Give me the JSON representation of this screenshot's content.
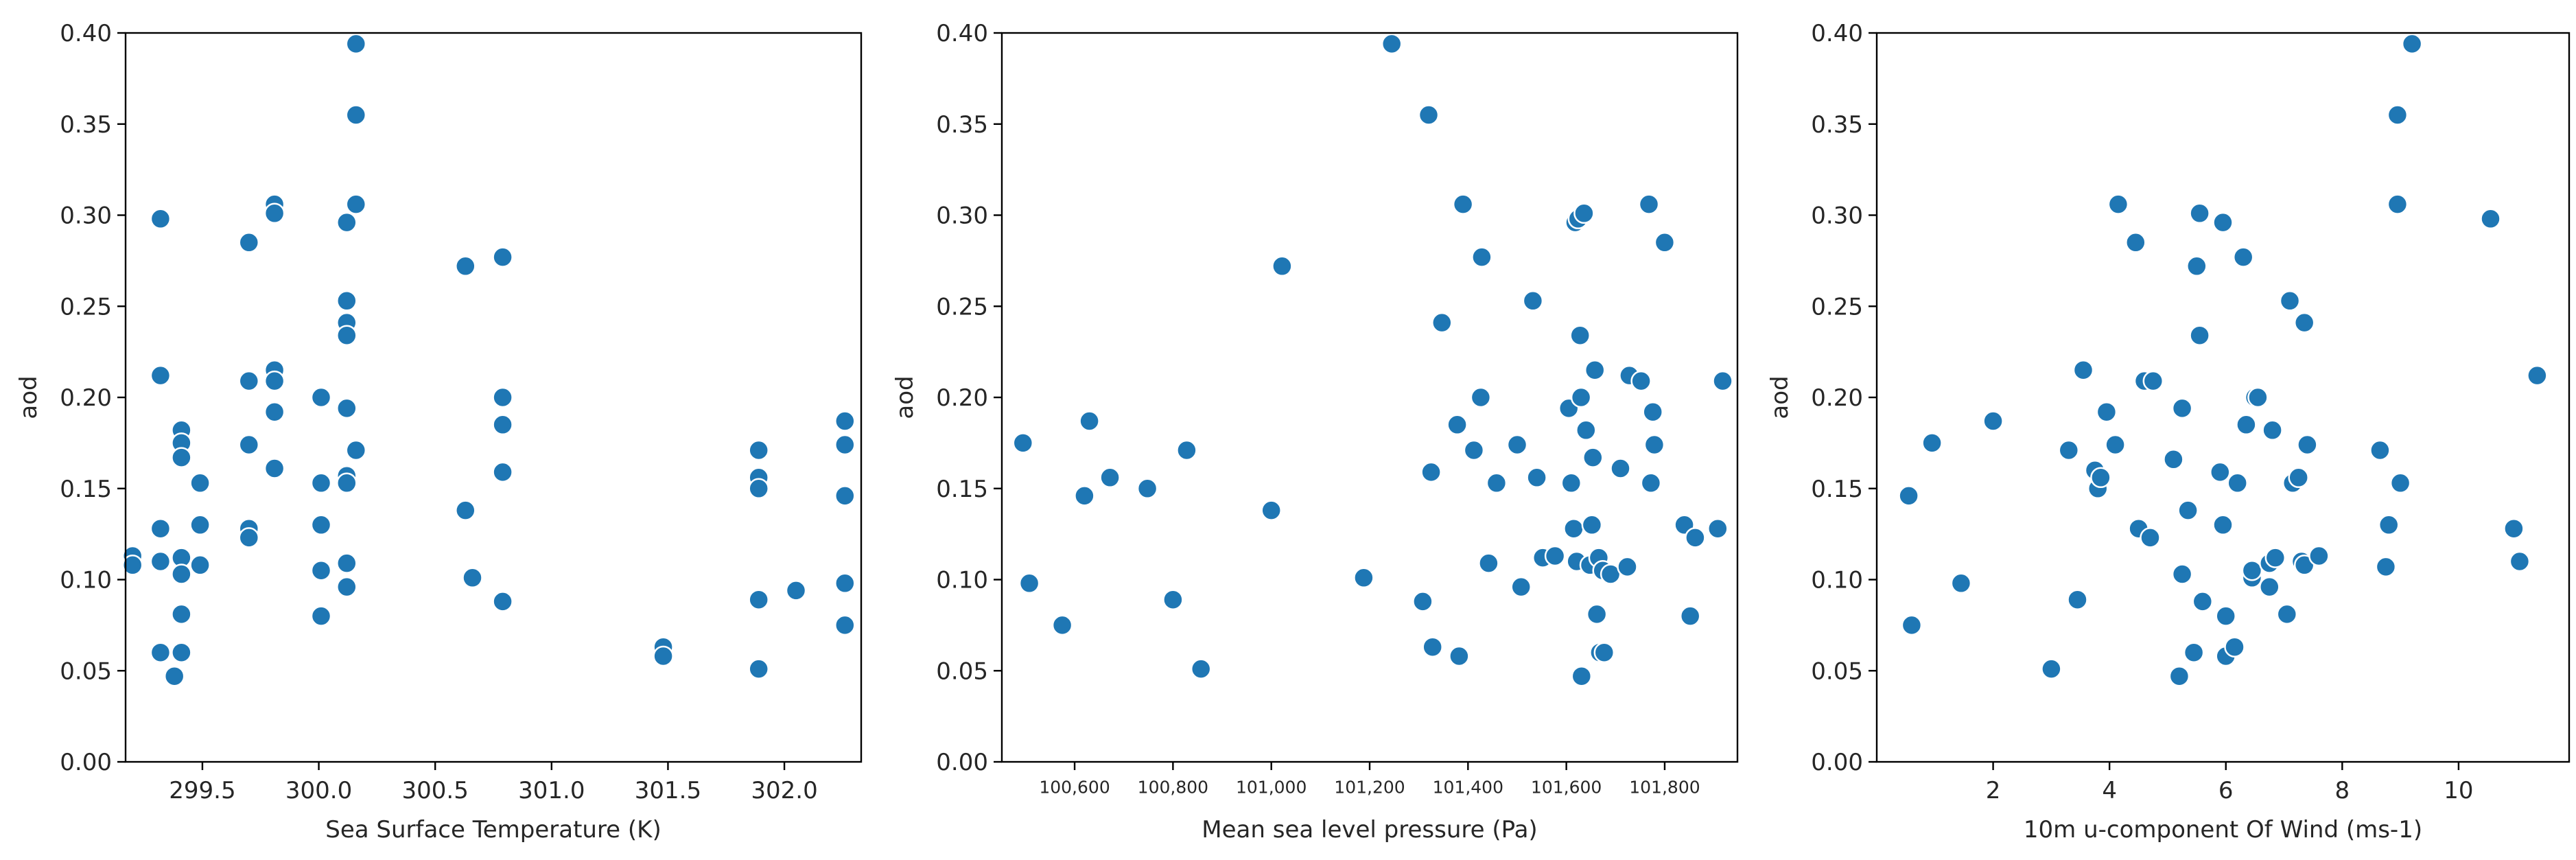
{
  "chart_data": [
    {
      "type": "scatter",
      "xlabel": "Sea Surface Temperature (K)",
      "ylabel": "aod",
      "xlim": [
        299.17,
        302.33
      ],
      "ylim": [
        0.0,
        0.4
      ],
      "xticks": [
        299.5,
        300.0,
        300.5,
        301.0,
        301.5,
        302.0
      ],
      "xtick_labels": [
        "299.5",
        "300.0",
        "300.5",
        "301.0",
        "301.5",
        "302.0"
      ],
      "yticks": [
        0.0,
        0.05,
        0.1,
        0.15,
        0.2,
        0.25,
        0.3,
        0.35,
        0.4
      ],
      "ytick_labels": [
        "0.00",
        "0.05",
        "0.10",
        "0.15",
        "0.20",
        "0.25",
        "0.30",
        "0.35",
        "0.40"
      ],
      "grid": false,
      "marker_color": "#1f77b4",
      "points": [
        {
          "x": 299.2,
          "y": 0.113
        },
        {
          "x": 299.2,
          "y": 0.108
        },
        {
          "x": 299.32,
          "y": 0.298
        },
        {
          "x": 299.32,
          "y": 0.212
        },
        {
          "x": 299.32,
          "y": 0.128
        },
        {
          "x": 299.32,
          "y": 0.11
        },
        {
          "x": 299.32,
          "y": 0.06
        },
        {
          "x": 299.38,
          "y": 0.047
        },
        {
          "x": 299.41,
          "y": 0.182
        },
        {
          "x": 299.41,
          "y": 0.175
        },
        {
          "x": 299.41,
          "y": 0.167
        },
        {
          "x": 299.41,
          "y": 0.112
        },
        {
          "x": 299.41,
          "y": 0.103
        },
        {
          "x": 299.41,
          "y": 0.081
        },
        {
          "x": 299.41,
          "y": 0.06
        },
        {
          "x": 299.49,
          "y": 0.153
        },
        {
          "x": 299.49,
          "y": 0.13
        },
        {
          "x": 299.49,
          "y": 0.108
        },
        {
          "x": 299.7,
          "y": 0.285
        },
        {
          "x": 299.7,
          "y": 0.209
        },
        {
          "x": 299.7,
          "y": 0.174
        },
        {
          "x": 299.7,
          "y": 0.128
        },
        {
          "x": 299.7,
          "y": 0.123
        },
        {
          "x": 299.81,
          "y": 0.306
        },
        {
          "x": 299.81,
          "y": 0.301
        },
        {
          "x": 299.81,
          "y": 0.215
        },
        {
          "x": 299.81,
          "y": 0.209
        },
        {
          "x": 299.81,
          "y": 0.192
        },
        {
          "x": 299.81,
          "y": 0.161
        },
        {
          "x": 300.01,
          "y": 0.2
        },
        {
          "x": 300.01,
          "y": 0.153
        },
        {
          "x": 300.01,
          "y": 0.13
        },
        {
          "x": 300.01,
          "y": 0.105
        },
        {
          "x": 300.01,
          "y": 0.08
        },
        {
          "x": 300.12,
          "y": 0.296
        },
        {
          "x": 300.12,
          "y": 0.253
        },
        {
          "x": 300.12,
          "y": 0.241
        },
        {
          "x": 300.12,
          "y": 0.234
        },
        {
          "x": 300.12,
          "y": 0.194
        },
        {
          "x": 300.12,
          "y": 0.157
        },
        {
          "x": 300.12,
          "y": 0.153
        },
        {
          "x": 300.12,
          "y": 0.109
        },
        {
          "x": 300.12,
          "y": 0.096
        },
        {
          "x": 300.16,
          "y": 0.394
        },
        {
          "x": 300.16,
          "y": 0.355
        },
        {
          "x": 300.16,
          "y": 0.306
        },
        {
          "x": 300.16,
          "y": 0.171
        },
        {
          "x": 300.63,
          "y": 0.272
        },
        {
          "x": 300.63,
          "y": 0.138
        },
        {
          "x": 300.66,
          "y": 0.101
        },
        {
          "x": 300.79,
          "y": 0.277
        },
        {
          "x": 300.79,
          "y": 0.2
        },
        {
          "x": 300.79,
          "y": 0.185
        },
        {
          "x": 300.79,
          "y": 0.159
        },
        {
          "x": 300.79,
          "y": 0.088
        },
        {
          "x": 301.48,
          "y": 0.063
        },
        {
          "x": 301.48,
          "y": 0.058
        },
        {
          "x": 301.89,
          "y": 0.171
        },
        {
          "x": 301.89,
          "y": 0.156
        },
        {
          "x": 301.89,
          "y": 0.15
        },
        {
          "x": 301.89,
          "y": 0.089
        },
        {
          "x": 301.89,
          "y": 0.051
        },
        {
          "x": 302.05,
          "y": 0.094
        },
        {
          "x": 302.26,
          "y": 0.187
        },
        {
          "x": 302.26,
          "y": 0.174
        },
        {
          "x": 302.26,
          "y": 0.146
        },
        {
          "x": 302.26,
          "y": 0.098
        },
        {
          "x": 302.26,
          "y": 0.075
        }
      ]
    },
    {
      "type": "scatter",
      "xlabel": "Mean sea level pressure (Pa)",
      "ylabel": "aod",
      "xlim": [
        100452,
        101948
      ],
      "ylim": [
        0.0,
        0.4
      ],
      "xticks": [
        100600,
        100800,
        101000,
        101200,
        101400,
        101600,
        101800
      ],
      "xtick_labels": [
        "100,600",
        "100,800",
        "101,000",
        "101,200",
        "101,400",
        "101,600",
        "101,800"
      ],
      "yticks": [
        0.0,
        0.05,
        0.1,
        0.15,
        0.2,
        0.25,
        0.3,
        0.35,
        0.4
      ],
      "ytick_labels": [
        "0.00",
        "0.05",
        "0.10",
        "0.15",
        "0.20",
        "0.25",
        "0.30",
        "0.35",
        "0.40"
      ],
      "grid": false,
      "marker_color": "#1f77b4",
      "points": [
        {
          "x": 100495,
          "y": 0.175
        },
        {
          "x": 100508,
          "y": 0.098
        },
        {
          "x": 100575,
          "y": 0.075
        },
        {
          "x": 100620,
          "y": 0.146
        },
        {
          "x": 100630,
          "y": 0.187
        },
        {
          "x": 100672,
          "y": 0.156
        },
        {
          "x": 100748,
          "y": 0.15
        },
        {
          "x": 100800,
          "y": 0.089
        },
        {
          "x": 100828,
          "y": 0.171
        },
        {
          "x": 100857,
          "y": 0.051
        },
        {
          "x": 101000,
          "y": 0.138
        },
        {
          "x": 101022,
          "y": 0.272
        },
        {
          "x": 101188,
          "y": 0.101
        },
        {
          "x": 101245,
          "y": 0.394
        },
        {
          "x": 101308,
          "y": 0.088
        },
        {
          "x": 101320,
          "y": 0.355
        },
        {
          "x": 101325,
          "y": 0.159
        },
        {
          "x": 101328,
          "y": 0.063
        },
        {
          "x": 101347,
          "y": 0.241
        },
        {
          "x": 101378,
          "y": 0.185
        },
        {
          "x": 101382,
          "y": 0.058
        },
        {
          "x": 101390,
          "y": 0.306
        },
        {
          "x": 101412,
          "y": 0.171
        },
        {
          "x": 101426,
          "y": 0.2
        },
        {
          "x": 101428,
          "y": 0.277
        },
        {
          "x": 101442,
          "y": 0.109
        },
        {
          "x": 101458,
          "y": 0.153
        },
        {
          "x": 101500,
          "y": 0.174
        },
        {
          "x": 101508,
          "y": 0.096
        },
        {
          "x": 101532,
          "y": 0.253
        },
        {
          "x": 101540,
          "y": 0.156
        },
        {
          "x": 101552,
          "y": 0.112
        },
        {
          "x": 101577,
          "y": 0.113
        },
        {
          "x": 101605,
          "y": 0.194
        },
        {
          "x": 101610,
          "y": 0.153
        },
        {
          "x": 101615,
          "y": 0.128
        },
        {
          "x": 101618,
          "y": 0.296
        },
        {
          "x": 101621,
          "y": 0.11
        },
        {
          "x": 101624,
          "y": 0.298
        },
        {
          "x": 101628,
          "y": 0.234
        },
        {
          "x": 101630,
          "y": 0.2
        },
        {
          "x": 101631,
          "y": 0.047
        },
        {
          "x": 101636,
          "y": 0.301
        },
        {
          "x": 101640,
          "y": 0.182
        },
        {
          "x": 101648,
          "y": 0.108
        },
        {
          "x": 101652,
          "y": 0.13
        },
        {
          "x": 101654,
          "y": 0.167
        },
        {
          "x": 101658,
          "y": 0.215
        },
        {
          "x": 101662,
          "y": 0.081
        },
        {
          "x": 101666,
          "y": 0.112
        },
        {
          "x": 101668,
          "y": 0.06
        },
        {
          "x": 101674,
          "y": 0.105
        },
        {
          "x": 101677,
          "y": 0.06
        },
        {
          "x": 101690,
          "y": 0.103
        },
        {
          "x": 101710,
          "y": 0.161
        },
        {
          "x": 101724,
          "y": 0.107
        },
        {
          "x": 101728,
          "y": 0.212
        },
        {
          "x": 101752,
          "y": 0.209
        },
        {
          "x": 101768,
          "y": 0.306
        },
        {
          "x": 101772,
          "y": 0.153
        },
        {
          "x": 101776,
          "y": 0.192
        },
        {
          "x": 101779,
          "y": 0.174
        },
        {
          "x": 101800,
          "y": 0.285
        },
        {
          "x": 101840,
          "y": 0.13
        },
        {
          "x": 101852,
          "y": 0.08
        },
        {
          "x": 101862,
          "y": 0.123
        },
        {
          "x": 101908,
          "y": 0.128
        },
        {
          "x": 101918,
          "y": 0.209
        }
      ]
    },
    {
      "type": "scatter",
      "xlabel": "10m u-component Of Wind (ms-1)",
      "ylabel": "aod",
      "xlim": [
        0.0,
        11.9
      ],
      "ylim": [
        0.0,
        0.4
      ],
      "xticks": [
        2,
        4,
        6,
        8,
        10
      ],
      "xtick_labels": [
        "2",
        "4",
        "6",
        "8",
        "10"
      ],
      "yticks": [
        0.0,
        0.05,
        0.1,
        0.15,
        0.2,
        0.25,
        0.3,
        0.35,
        0.4
      ],
      "ytick_labels": [
        "0.00",
        "0.05",
        "0.10",
        "0.15",
        "0.20",
        "0.25",
        "0.30",
        "0.35",
        "0.40"
      ],
      "grid": false,
      "marker_color": "#1f77b4",
      "points": [
        {
          "x": 0.55,
          "y": 0.146
        },
        {
          "x": 0.6,
          "y": 0.075
        },
        {
          "x": 0.95,
          "y": 0.175
        },
        {
          "x": 1.45,
          "y": 0.098
        },
        {
          "x": 2.0,
          "y": 0.187
        },
        {
          "x": 3.0,
          "y": 0.051
        },
        {
          "x": 3.3,
          "y": 0.171
        },
        {
          "x": 3.45,
          "y": 0.089
        },
        {
          "x": 3.55,
          "y": 0.215
        },
        {
          "x": 3.75,
          "y": 0.16
        },
        {
          "x": 3.8,
          "y": 0.15
        },
        {
          "x": 3.85,
          "y": 0.156
        },
        {
          "x": 3.95,
          "y": 0.192
        },
        {
          "x": 4.1,
          "y": 0.174
        },
        {
          "x": 4.15,
          "y": 0.306
        },
        {
          "x": 4.45,
          "y": 0.285
        },
        {
          "x": 4.5,
          "y": 0.128
        },
        {
          "x": 4.6,
          "y": 0.209
        },
        {
          "x": 4.7,
          "y": 0.123
        },
        {
          "x": 4.75,
          "y": 0.209
        },
        {
          "x": 5.1,
          "y": 0.166
        },
        {
          "x": 5.2,
          "y": 0.047
        },
        {
          "x": 5.25,
          "y": 0.103
        },
        {
          "x": 5.25,
          "y": 0.194
        },
        {
          "x": 5.35,
          "y": 0.138
        },
        {
          "x": 5.45,
          "y": 0.06
        },
        {
          "x": 5.5,
          "y": 0.272
        },
        {
          "x": 5.55,
          "y": 0.301
        },
        {
          "x": 5.55,
          "y": 0.234
        },
        {
          "x": 5.6,
          "y": 0.088
        },
        {
          "x": 5.9,
          "y": 0.159
        },
        {
          "x": 5.95,
          "y": 0.296
        },
        {
          "x": 5.95,
          "y": 0.13
        },
        {
          "x": 6.0,
          "y": 0.08
        },
        {
          "x": 6.0,
          "y": 0.058
        },
        {
          "x": 6.15,
          "y": 0.063
        },
        {
          "x": 6.2,
          "y": 0.153
        },
        {
          "x": 6.3,
          "y": 0.277
        },
        {
          "x": 6.35,
          "y": 0.185
        },
        {
          "x": 6.45,
          "y": 0.101
        },
        {
          "x": 6.45,
          "y": 0.105
        },
        {
          "x": 6.5,
          "y": 0.2
        },
        {
          "x": 6.55,
          "y": 0.2
        },
        {
          "x": 6.75,
          "y": 0.109
        },
        {
          "x": 6.75,
          "y": 0.096
        },
        {
          "x": 6.8,
          "y": 0.182
        },
        {
          "x": 6.85,
          "y": 0.112
        },
        {
          "x": 7.05,
          "y": 0.081
        },
        {
          "x": 7.1,
          "y": 0.253
        },
        {
          "x": 7.15,
          "y": 0.153
        },
        {
          "x": 7.25,
          "y": 0.156
        },
        {
          "x": 7.3,
          "y": 0.11
        },
        {
          "x": 7.35,
          "y": 0.108
        },
        {
          "x": 7.35,
          "y": 0.241
        },
        {
          "x": 7.4,
          "y": 0.174
        },
        {
          "x": 7.6,
          "y": 0.113
        },
        {
          "x": 8.65,
          "y": 0.171
        },
        {
          "x": 8.75,
          "y": 0.107
        },
        {
          "x": 8.8,
          "y": 0.13
        },
        {
          "x": 8.95,
          "y": 0.355
        },
        {
          "x": 8.95,
          "y": 0.306
        },
        {
          "x": 9.0,
          "y": 0.153
        },
        {
          "x": 9.2,
          "y": 0.394
        },
        {
          "x": 10.55,
          "y": 0.298
        },
        {
          "x": 10.95,
          "y": 0.128
        },
        {
          "x": 11.05,
          "y": 0.11
        },
        {
          "x": 11.35,
          "y": 0.212
        }
      ]
    }
  ]
}
